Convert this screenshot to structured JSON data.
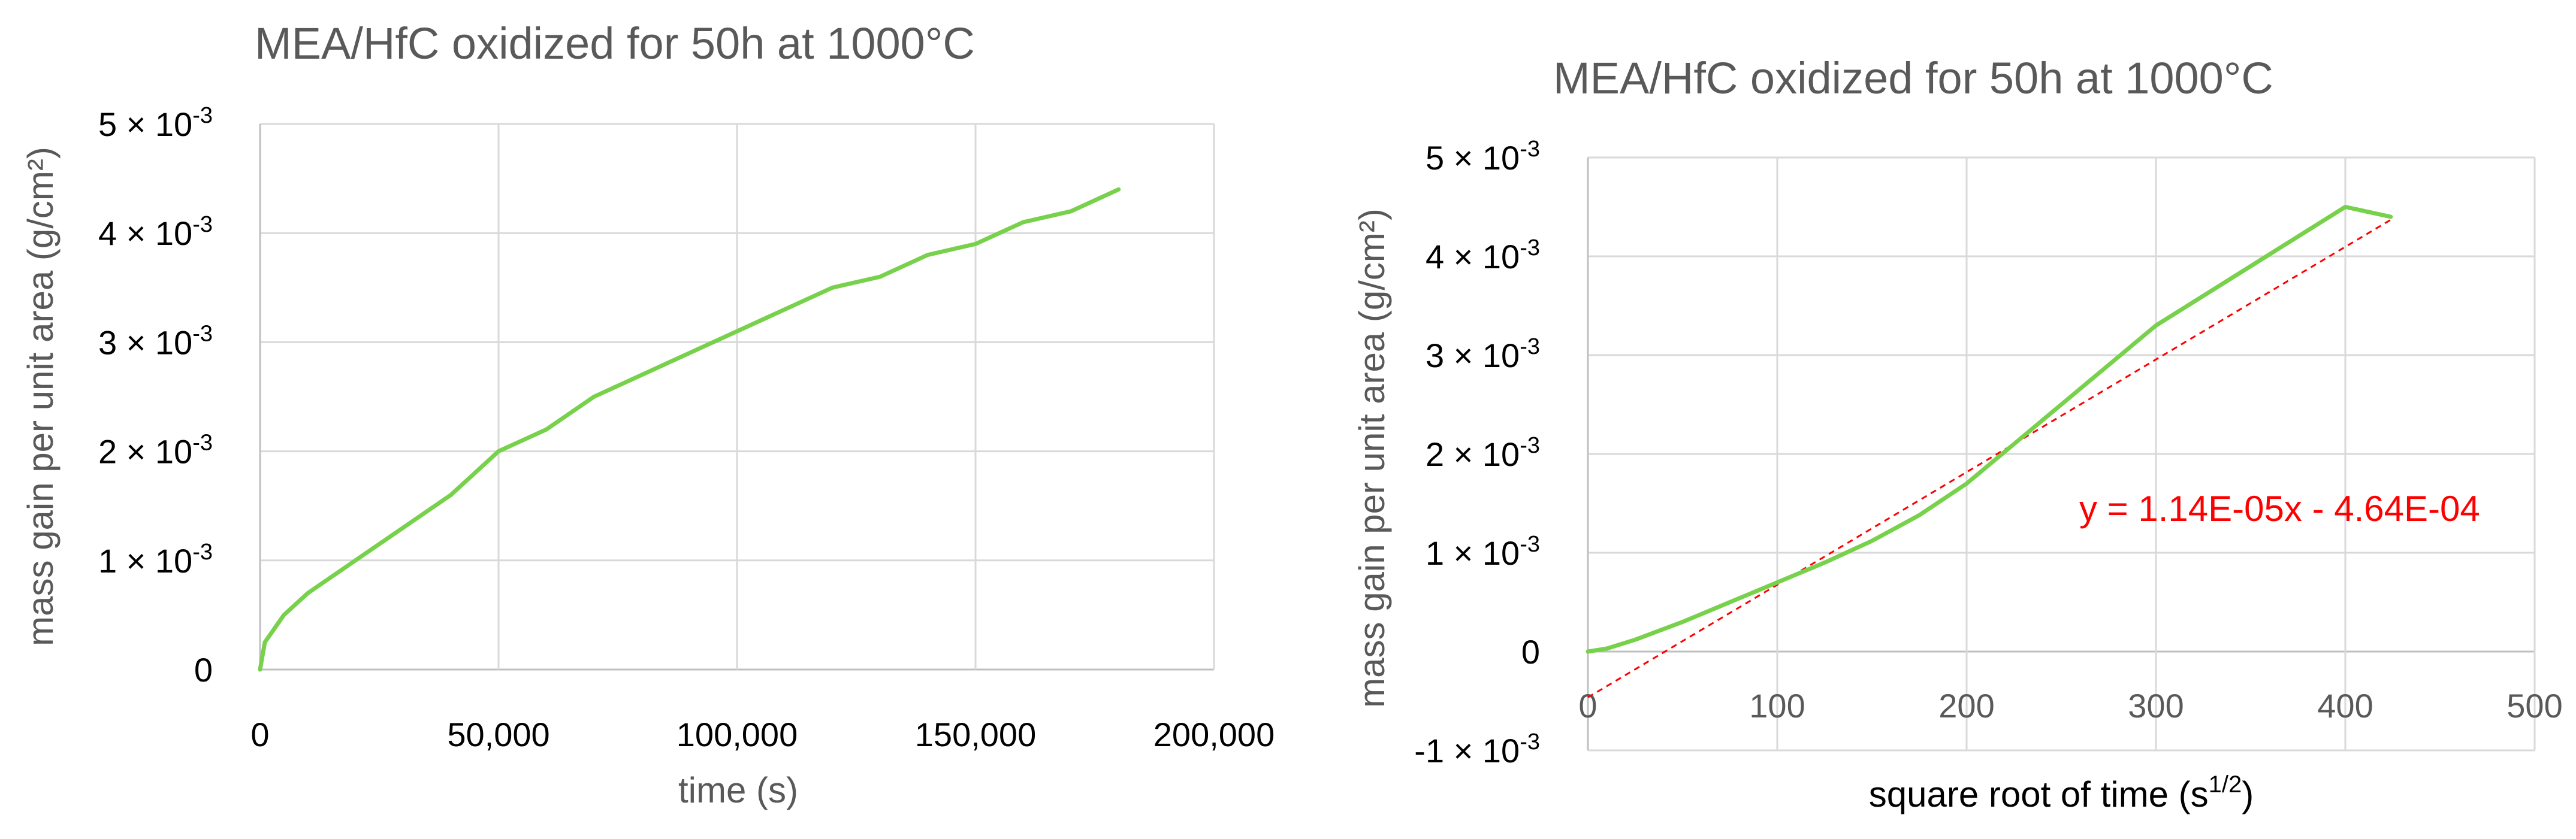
{
  "chart_data": [
    {
      "type": "line",
      "title": "MEA/HfC oxidized for 50h at 1000°C",
      "xlabel": "time (s)",
      "ylabel": "mass gain per unit area (g/cm²)",
      "xlim": [
        0,
        200000
      ],
      "ylim": [
        0,
        0.005
      ],
      "x_ticks": [
        "0",
        "50,000",
        "100,000",
        "150,000",
        "200,000"
      ],
      "y_ticks": [
        {
          "value": 0,
          "mantissa": "0",
          "exp": ""
        },
        {
          "value": 0.001,
          "mantissa": "1 × 10",
          "exp": "-3"
        },
        {
          "value": 0.002,
          "mantissa": "2 × 10",
          "exp": "-3"
        },
        {
          "value": 0.003,
          "mantissa": "3 × 10",
          "exp": "-3"
        },
        {
          "value": 0.004,
          "mantissa": "4 × 10",
          "exp": "-3"
        },
        {
          "value": 0.005,
          "mantissa": "5 × 10",
          "exp": "-3"
        }
      ],
      "grid": true,
      "legend": "none",
      "series": [
        {
          "color": "#77d14b",
          "x": [
            0,
            1000,
            5000,
            10000,
            20000,
            30000,
            40000,
            50000,
            60000,
            70000,
            80000,
            90000,
            100000,
            110000,
            120000,
            130000,
            140000,
            150000,
            160000,
            170000,
            180000
          ],
          "y": [
            0,
            0.00025,
            0.0005,
            0.0007,
            0.001,
            0.0013,
            0.0016,
            0.002,
            0.0022,
            0.0025,
            0.0027,
            0.0029,
            0.0031,
            0.0033,
            0.0035,
            0.0036,
            0.0038,
            0.0039,
            0.0041,
            0.0042,
            0.0044
          ]
        }
      ]
    },
    {
      "type": "line",
      "title": "MEA/HfC oxidized for 50h at 1000°C",
      "xlabel": "square root of time (s",
      "xlabel_sup": "1/2",
      "xlabel_end": ")",
      "ylabel": "mass gain per unit area (g/cm²)",
      "xlim": [
        0,
        500
      ],
      "ylim": [
        -0.001,
        0.005
      ],
      "x_ticks": [
        "0",
        "100",
        "200",
        "300",
        "400",
        "500"
      ],
      "y_ticks": [
        {
          "value": -0.001,
          "mantissa": "-1 × 10",
          "exp": "-3"
        },
        {
          "value": 0,
          "mantissa": "0",
          "exp": ""
        },
        {
          "value": 0.001,
          "mantissa": "1 × 10",
          "exp": "-3"
        },
        {
          "value": 0.002,
          "mantissa": "2 × 10",
          "exp": "-3"
        },
        {
          "value": 0.003,
          "mantissa": "3 × 10",
          "exp": "-3"
        },
        {
          "value": 0.004,
          "mantissa": "4 × 10",
          "exp": "-3"
        },
        {
          "value": 0.005,
          "mantissa": "5 × 10",
          "exp": "-3"
        }
      ],
      "grid": true,
      "legend": "none",
      "series": [
        {
          "color": "#77d14b",
          "x": [
            0,
            10,
            25,
            50,
            75,
            100,
            125,
            150,
            175,
            200,
            225,
            250,
            275,
            300,
            325,
            350,
            375,
            400,
            424
          ],
          "y": [
            0,
            3e-05,
            0.00012,
            0.0003,
            0.0005,
            0.0007,
            0.0009,
            0.00112,
            0.00138,
            0.0017,
            0.0021,
            0.0025,
            0.0029,
            0.0033,
            0.0036,
            0.0039,
            0.0042,
            0.0045,
            0.0044
          ]
        }
      ],
      "trendline": {
        "label": "y = 1.14E-05x - 4.64E-04",
        "slope": 1.14e-05,
        "intercept": -0.000464,
        "x_range": [
          0,
          424
        ],
        "color": "#ff0000"
      }
    }
  ]
}
